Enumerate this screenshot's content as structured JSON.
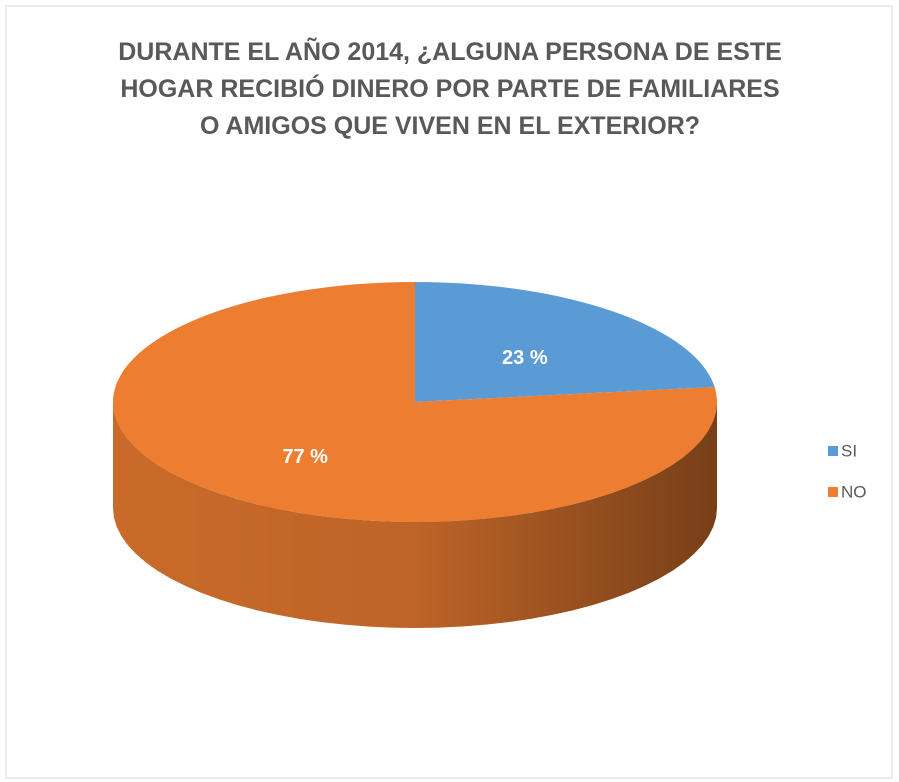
{
  "chart_data": {
    "type": "pie",
    "title": "DURANTE EL AÑO 2014, ¿ALGUNA PERSONA DE ESTE HOGAR RECIBIÓ DINERO POR PARTE DE FAMILIARES O AMIGOS QUE VIVEN EN EL EXTERIOR?",
    "categories": [
      "SI",
      "NO"
    ],
    "values": [
      23,
      77
    ],
    "value_labels": [
      "23 %",
      "77 %"
    ],
    "colors": [
      "#5b9bd5",
      "#ed7d31"
    ],
    "legend": "right"
  }
}
